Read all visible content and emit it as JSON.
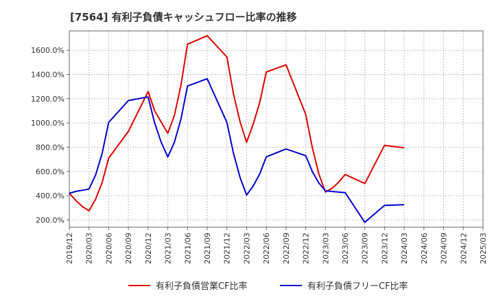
{
  "chart_data": {
    "type": "line",
    "title": "[7564]  有利子負債キャッシュフロー比率の推移",
    "xlabel": "",
    "ylabel": "",
    "ylim": [
      140,
      1760
    ],
    "grid": true,
    "legend_position": "bottom",
    "y_ticks": [
      {
        "value": 200,
        "label": "200.0%"
      },
      {
        "value": 400,
        "label": "400.0%"
      },
      {
        "value": 600,
        "label": "600.0%"
      },
      {
        "value": 800,
        "label": "800.0%"
      },
      {
        "value": 1000,
        "label": "1000.0%"
      },
      {
        "value": 1200,
        "label": "1200.0%"
      },
      {
        "value": 1400,
        "label": "1400.0%"
      },
      {
        "value": 1600,
        "label": "1600.0%"
      }
    ],
    "x_ticks": [
      "2019/12",
      "2020/03",
      "2020/06",
      "2020/09",
      "2020/12",
      "2021/03",
      "2021/06",
      "2021/09",
      "2021/12",
      "2022/03",
      "2022/06",
      "2022/09",
      "2022/12",
      "2023/03",
      "2023/06",
      "2023/09",
      "2023/12",
      "2024/03",
      "2024/06",
      "2024/09",
      "2024/12",
      "2025/03"
    ],
    "series": [
      {
        "name": "有利子負債営業CF比率",
        "color": "#dd0000",
        "points": [
          [
            "2019/12",
            420
          ],
          [
            "2020/01",
            360
          ],
          [
            "2020/02",
            310
          ],
          [
            "2020/03",
            275
          ],
          [
            "2020/04",
            370
          ],
          [
            "2020/05",
            510
          ],
          [
            "2020/06",
            710
          ],
          [
            "2020/09",
            930
          ],
          [
            "2020/12",
            1260
          ],
          [
            "2021/01",
            1100
          ],
          [
            "2021/03",
            915
          ],
          [
            "2021/04",
            1060
          ],
          [
            "2021/05",
            1310
          ],
          [
            "2021/06",
            1650
          ],
          [
            "2021/09",
            1720
          ],
          [
            "2021/12",
            1545
          ],
          [
            "2022/01",
            1240
          ],
          [
            "2022/02",
            1010
          ],
          [
            "2022/03",
            840
          ],
          [
            "2022/04",
            990
          ],
          [
            "2022/05",
            1170
          ],
          [
            "2022/06",
            1420
          ],
          [
            "2022/09",
            1480
          ],
          [
            "2022/12",
            1070
          ],
          [
            "2023/01",
            800
          ],
          [
            "2023/02",
            580
          ],
          [
            "2023/03",
            430
          ],
          [
            "2023/04",
            460
          ],
          [
            "2023/05",
            510
          ],
          [
            "2023/06",
            575
          ],
          [
            "2023/09",
            500
          ],
          [
            "2023/12",
            815
          ],
          [
            "2024/03",
            795
          ]
        ]
      },
      {
        "name": "有利子負債フリーCF比率",
        "color": "#0000cc",
        "points": [
          [
            "2019/12",
            420
          ],
          [
            "2020/01",
            435
          ],
          [
            "2020/02",
            445
          ],
          [
            "2020/03",
            455
          ],
          [
            "2020/04",
            570
          ],
          [
            "2020/05",
            750
          ],
          [
            "2020/06",
            1005
          ],
          [
            "2020/09",
            1185
          ],
          [
            "2020/12",
            1215
          ],
          [
            "2021/01",
            1000
          ],
          [
            "2021/02",
            840
          ],
          [
            "2021/03",
            720
          ],
          [
            "2021/04",
            840
          ],
          [
            "2021/05",
            1030
          ],
          [
            "2021/06",
            1305
          ],
          [
            "2021/09",
            1365
          ],
          [
            "2021/12",
            1005
          ],
          [
            "2022/01",
            750
          ],
          [
            "2022/02",
            550
          ],
          [
            "2022/03",
            405
          ],
          [
            "2022/04",
            480
          ],
          [
            "2022/05",
            580
          ],
          [
            "2022/06",
            720
          ],
          [
            "2022/09",
            785
          ],
          [
            "2022/12",
            730
          ],
          [
            "2023/01",
            600
          ],
          [
            "2023/02",
            505
          ],
          [
            "2023/03",
            440
          ],
          [
            "2023/06",
            425
          ],
          [
            "2023/09",
            180
          ],
          [
            "2023/12",
            320
          ],
          [
            "2024/03",
            325
          ]
        ]
      }
    ]
  }
}
